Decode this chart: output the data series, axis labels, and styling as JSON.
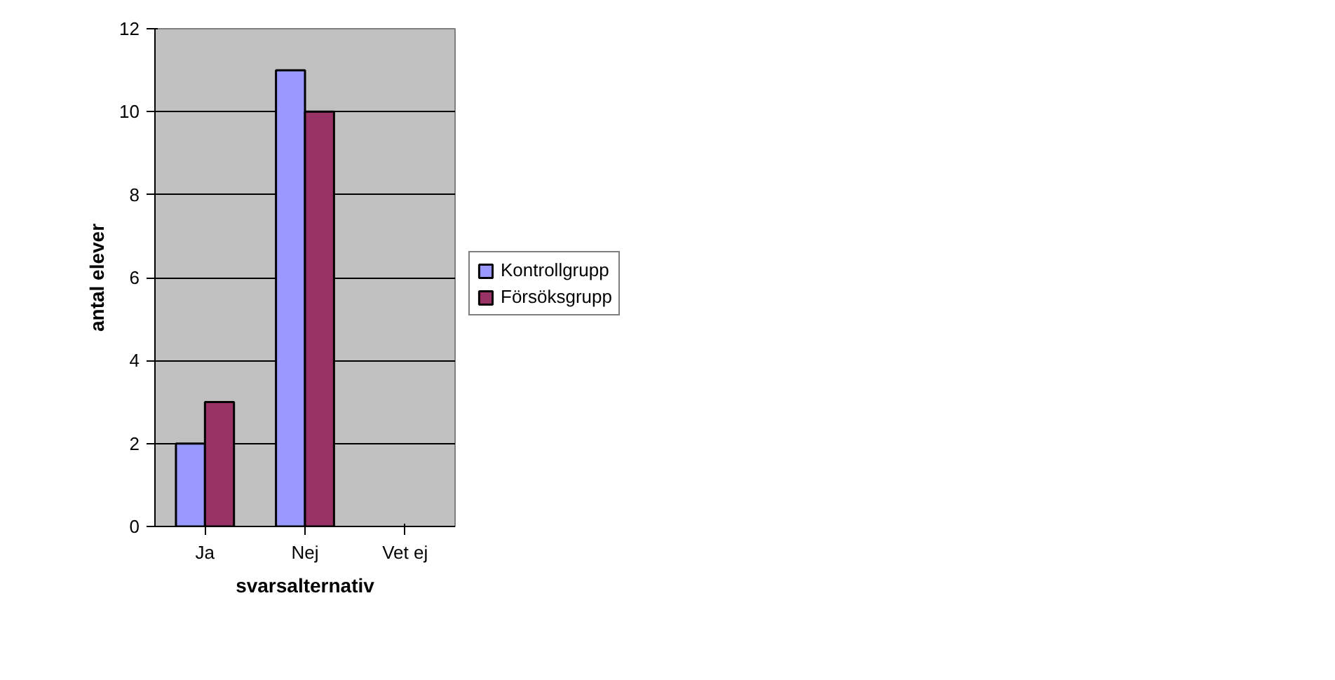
{
  "chart_data": {
    "type": "bar",
    "xlabel": "svarsalternativ",
    "ylabel": "antal elever",
    "categories": [
      "Ja",
      "Nej",
      "Vet ej"
    ],
    "series": [
      {
        "name": "Kontrollgrupp",
        "color": "#9999ff",
        "values": [
          2,
          11,
          0
        ]
      },
      {
        "name": "Försöksgrupp",
        "color": "#993366",
        "values": [
          3,
          10,
          0
        ]
      }
    ],
    "ylim": [
      0,
      12
    ],
    "yticks": [
      0,
      2,
      4,
      6,
      8,
      10,
      12
    ],
    "grid": "y",
    "legend": "right"
  }
}
